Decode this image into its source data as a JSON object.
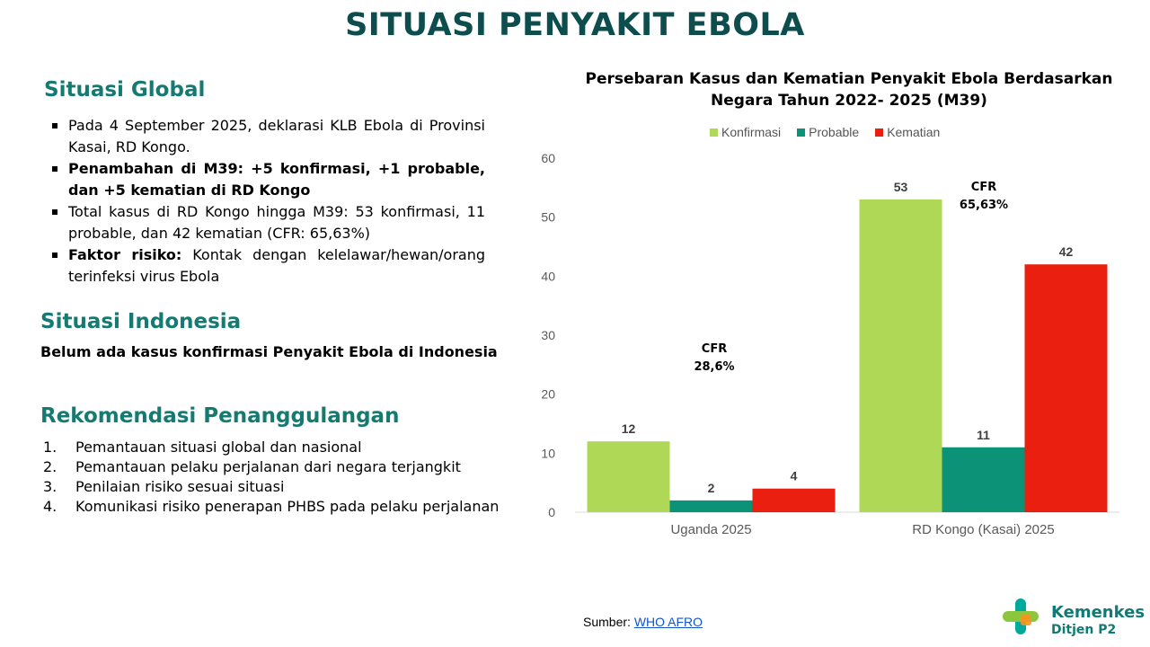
{
  "title": "SITUASI PENYAKIT EBOLA",
  "global": {
    "heading": "Situasi Global",
    "bullets": [
      {
        "bold": "",
        "text": "Pada 4 September 2025, deklarasi KLB Ebola di Provinsi Kasai, RD Kongo."
      },
      {
        "bold": "Penambahan di M39: +5 konfirmasi, +1 probable, dan +5 kematian di RD Kongo",
        "text": ""
      },
      {
        "bold": "",
        "text": "Total kasus di RD Kongo hingga M39: 53 konfirmasi, 11 probable, dan 42 kematian (CFR: 65,63%)"
      },
      {
        "bold": "Faktor risiko:",
        "text": " Kontak dengan kelelawar/hewan/orang terinfeksi virus Ebola"
      }
    ]
  },
  "indonesia": {
    "heading": "Situasi Indonesia",
    "text": "Belum ada kasus konfirmasi Penyakit Ebola di Indonesia"
  },
  "rekomendasi": {
    "heading": "Rekomendasi Penanggulangan",
    "items": [
      {
        "num": "1.",
        "text": "Pemantauan situasi global dan nasional"
      },
      {
        "num": "2.",
        "text": "Pemantauan pelaku perjalanan dari negara terjangkit"
      },
      {
        "num": "3.",
        "text": "Penilaian risiko sesuai situasi"
      },
      {
        "num": "4.",
        "text": "Komunikasi risiko penerapan PHBS pada pelaku perjalanan"
      }
    ]
  },
  "chart_data": {
    "type": "bar",
    "title": "Persebaran Kasus dan Kematian Penyakit Ebola Berdasarkan Negara Tahun 2022- 2025 (M39)",
    "categories": [
      "Uganda 2025",
      "RD Kongo (Kasai) 2025"
    ],
    "series": [
      {
        "name": "Konfirmasi",
        "values": [
          12,
          53
        ],
        "color": "#b0d857"
      },
      {
        "name": "Probable",
        "values": [
          2,
          11
        ],
        "color": "#0b9277"
      },
      {
        "name": "Kematian",
        "values": [
          4,
          42
        ],
        "color": "#ea1f10"
      }
    ],
    "ylim": [
      0,
      60
    ],
    "yticks": [
      0,
      10,
      20,
      30,
      40,
      50,
      60
    ],
    "legend": "top",
    "annotations": [
      {
        "line1": "CFR",
        "line2": "28,6%",
        "category": "Uganda 2025"
      },
      {
        "line1": "CFR",
        "line2": "65,63%",
        "category": "RD Kongo (Kasai) 2025"
      }
    ]
  },
  "source": {
    "label": "Sumber: ",
    "link": "WHO AFRO"
  },
  "logo": {
    "name": "Kemenkes",
    "sub": "Ditjen P2",
    "colors": [
      "#8cc63f",
      "#00a99d",
      "#f7931e"
    ]
  }
}
